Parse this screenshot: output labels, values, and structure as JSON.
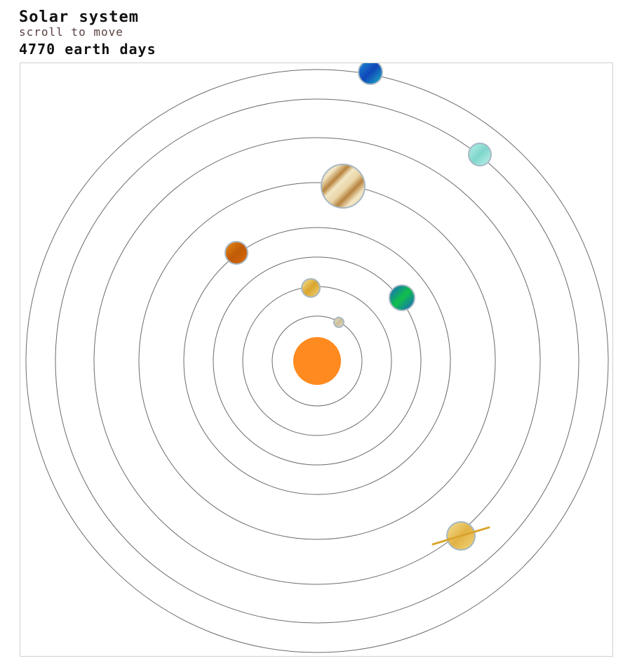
{
  "header": {
    "title": "Solar system",
    "hint": "scroll to move",
    "day_count": "4770",
    "day_unit": "earth days"
  },
  "colors": {
    "orbit": "#6b6b6b",
    "sun": "#ff8a20",
    "planet_border": "#a8b8c4"
  },
  "sun": {
    "icon": "sun-icon"
  },
  "planets": [
    {
      "id": "mercury",
      "icon": "mercury-icon",
      "colors": [
        "#ece2c6",
        "#cdbf9c",
        "#e8dcc0"
      ]
    },
    {
      "id": "venus",
      "icon": "venus-icon",
      "colors": [
        "#f6e39a",
        "#d9a52e",
        "#f3d57a"
      ]
    },
    {
      "id": "earth",
      "icon": "earth-icon",
      "colors": [
        "#1a5fd0",
        "#0fc04a",
        "#1a5fd0"
      ]
    },
    {
      "id": "mars",
      "icon": "mars-icon",
      "colors": [
        "#e98a10",
        "#c05a08",
        "#d96a0a"
      ]
    },
    {
      "id": "jupiter",
      "icon": "jupiter-icon",
      "colors": [
        "#e8d6a8",
        "#b8833e",
        "#f3e6c4"
      ]
    },
    {
      "id": "saturn",
      "icon": "saturn-icon",
      "colors": [
        "#f3e39a",
        "#e2b244",
        "#f0d77c"
      ],
      "ring": "#d9a52e"
    },
    {
      "id": "uranus",
      "icon": "uranus-icon",
      "colors": [
        "#b8f0e8",
        "#7fd6cc",
        "#c4f3ec"
      ]
    },
    {
      "id": "neptune",
      "icon": "neptune-icon",
      "colors": [
        "#1f8fd8",
        "#1046b8",
        "#1fb8c8"
      ]
    }
  ]
}
